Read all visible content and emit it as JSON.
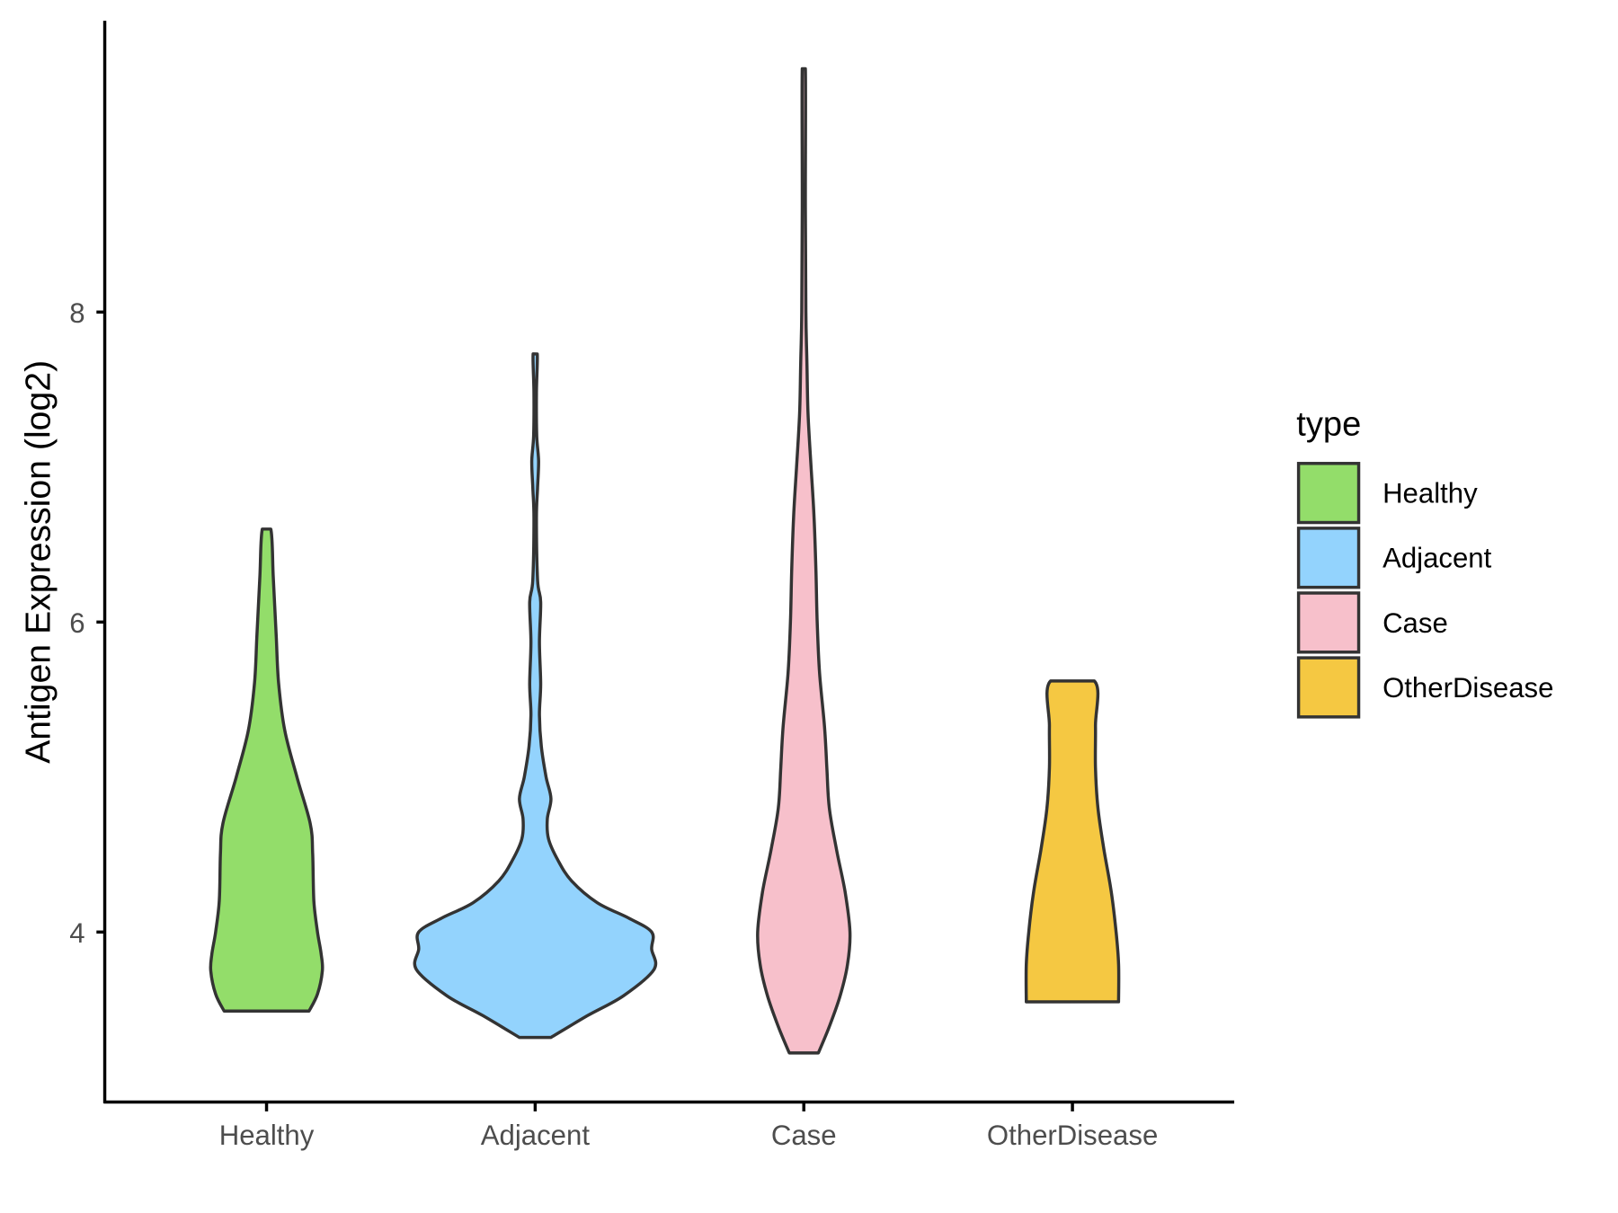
{
  "chart_data": {
    "type": "violin",
    "title": "",
    "xlabel": "",
    "ylabel": "Antigen Expression (log2)",
    "ylim": [
      2.45,
      10.3
    ],
    "yticks": [
      4,
      6,
      8
    ],
    "ytick_labels": [
      "4",
      "6",
      "8"
    ],
    "categories": [
      "Healthy",
      "Adjacent",
      "Case",
      "OtherDisease"
    ],
    "grid": false,
    "legend": {
      "title": "type",
      "placement": "right",
      "entries": [
        "Healthy",
        "Adjacent",
        "Case",
        "OtherDisease"
      ]
    },
    "colors": {
      "Healthy": "#93DD6A",
      "Adjacent": "#93D3FD",
      "Case": "#F7C0CB",
      "OtherDisease": "#F5C842",
      "outline": "#333333"
    },
    "series": [
      {
        "name": "Healthy",
        "min": 3.49,
        "max": 6.6,
        "profile": [
          [
            3.49,
            0.35
          ],
          [
            3.6,
            0.42
          ],
          [
            3.75,
            0.46
          ],
          [
            3.86,
            0.45
          ],
          [
            4.0,
            0.42
          ],
          [
            4.2,
            0.39
          ],
          [
            4.5,
            0.38
          ],
          [
            4.7,
            0.36
          ],
          [
            5.0,
            0.25
          ],
          [
            5.3,
            0.15
          ],
          [
            5.6,
            0.1
          ],
          [
            5.9,
            0.08
          ],
          [
            6.3,
            0.055
          ],
          [
            6.6,
            0.035
          ]
        ]
      },
      {
        "name": "Adjacent",
        "min": 3.32,
        "max": 7.73,
        "profile": [
          [
            3.32,
            0.13
          ],
          [
            3.46,
            0.43
          ],
          [
            3.59,
            0.73
          ],
          [
            3.76,
            0.98
          ],
          [
            3.89,
            0.96
          ],
          [
            4.0,
            0.96
          ],
          [
            4.09,
            0.77
          ],
          [
            4.19,
            0.51
          ],
          [
            4.33,
            0.3
          ],
          [
            4.46,
            0.19
          ],
          [
            4.6,
            0.11
          ],
          [
            4.73,
            0.1
          ],
          [
            4.86,
            0.13
          ],
          [
            5.0,
            0.09
          ],
          [
            5.2,
            0.05
          ],
          [
            5.4,
            0.035
          ],
          [
            5.6,
            0.045
          ],
          [
            5.87,
            0.035
          ],
          [
            6.13,
            0.045
          ],
          [
            6.27,
            0.02
          ],
          [
            6.67,
            0.01
          ],
          [
            6.87,
            0.02
          ],
          [
            7.04,
            0.028
          ],
          [
            7.2,
            0.013
          ],
          [
            7.47,
            0.01
          ],
          [
            7.73,
            0.017
          ]
        ]
      },
      {
        "name": "Case",
        "min": 3.22,
        "max": 9.57,
        "profile": [
          [
            3.22,
            0.12
          ],
          [
            3.39,
            0.21
          ],
          [
            3.59,
            0.3
          ],
          [
            3.79,
            0.36
          ],
          [
            4.0,
            0.38
          ],
          [
            4.26,
            0.34
          ],
          [
            4.53,
            0.27
          ],
          [
            4.8,
            0.21
          ],
          [
            5.06,
            0.19
          ],
          [
            5.33,
            0.17
          ],
          [
            5.67,
            0.13
          ],
          [
            6.0,
            0.11
          ],
          [
            6.33,
            0.1
          ],
          [
            6.67,
            0.085
          ],
          [
            7.0,
            0.06
          ],
          [
            7.34,
            0.035
          ],
          [
            7.67,
            0.026
          ],
          [
            8.0,
            0.017
          ],
          [
            8.68,
            0.013
          ],
          [
            9.57,
            0.013
          ]
        ]
      },
      {
        "name": "OtherDisease",
        "min": 3.55,
        "max": 5.62,
        "profile": [
          [
            3.55,
            0.38
          ],
          [
            3.79,
            0.38
          ],
          [
            4.0,
            0.36
          ],
          [
            4.26,
            0.32
          ],
          [
            4.53,
            0.26
          ],
          [
            4.8,
            0.21
          ],
          [
            5.06,
            0.19
          ],
          [
            5.33,
            0.19
          ],
          [
            5.62,
            0.18
          ]
        ]
      }
    ]
  }
}
